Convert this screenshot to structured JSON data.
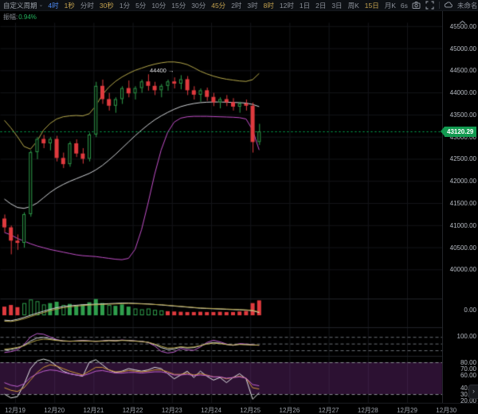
{
  "toolbar": {
    "period_dropdown": "自定义周期",
    "timeframes": [
      {
        "label": "4时",
        "state": "selected"
      },
      {
        "label": "1秒",
        "state": "favorite"
      },
      {
        "label": "分时",
        "state": "normal"
      },
      {
        "label": "30秒",
        "state": "favorite"
      },
      {
        "label": "1分",
        "state": "normal"
      },
      {
        "label": "5分",
        "state": "normal"
      },
      {
        "label": "10分",
        "state": "normal"
      },
      {
        "label": "15分",
        "state": "normal"
      },
      {
        "label": "30分",
        "state": "normal"
      },
      {
        "label": "45分",
        "state": "favorite"
      },
      {
        "label": "2时",
        "state": "normal"
      },
      {
        "label": "3时",
        "state": "normal"
      },
      {
        "label": "8时",
        "state": "favorite"
      },
      {
        "label": "12时",
        "state": "normal"
      },
      {
        "label": "1日",
        "state": "normal"
      },
      {
        "label": "2日",
        "state": "normal"
      },
      {
        "label": "3日",
        "state": "normal"
      },
      {
        "label": "周K",
        "state": "normal"
      },
      {
        "label": "15日",
        "state": "favorite"
      },
      {
        "label": "月K",
        "state": "normal"
      }
    ],
    "countdown": "6s",
    "account_label": "未命名",
    "order_button": "下单"
  },
  "info_row": {
    "label": "振幅:",
    "value": "0.94%"
  },
  "price_axis": {
    "labels": [
      "45500.00",
      "45000.00",
      "44500.00",
      "44000.00",
      "43500.00",
      "43000.00",
      "42500.00",
      "42000.00",
      "41500.00",
      "41000.00",
      "40500.00",
      "40000.00"
    ],
    "current_price": "43120.29"
  },
  "date_axis": [
    "12月19",
    "12月20",
    "12月21",
    "12月22",
    "12月23",
    "12月24",
    "12月25",
    "12月26",
    "12月27",
    "12月28",
    "12月29",
    "12月30"
  ],
  "annotation": {
    "text": "44400",
    "arrow": "→",
    "price": 44400
  },
  "panel_axis": {
    "volume_zero": "0.00",
    "indicator2_top": "100.00",
    "indicator3_labels": [
      "80.00",
      "70.00",
      "60.00",
      "40.00",
      "30.00",
      "20.00"
    ]
  },
  "colors": {
    "up": "#2f9e4c",
    "down": "#df3a3e",
    "current_line": "#00b355",
    "tag_bg": "#129a50",
    "boll_upper": "#b6a94b",
    "boll_mid": "#cfd2d6",
    "boll_lower": "#c24fc9",
    "accent_blue": "#4e8bf5",
    "favorite_gold": "#c2a04e",
    "order_blue": "#2765ec",
    "kdj_band": "rgba(146,56,166,0.30)"
  },
  "chart_data": {
    "type": "candlestick",
    "period": "4时",
    "symbol_current_price": 43120.29,
    "price_axis_range": [
      40000,
      45500
    ],
    "candles": [
      [
        41150,
        41250,
        40850,
        40950
      ],
      [
        40950,
        41000,
        40350,
        40650
      ],
      [
        40650,
        40800,
        40450,
        40600
      ],
      [
        40600,
        41300,
        40500,
        41250
      ],
      [
        41250,
        42700,
        41200,
        42650
      ],
      [
        42650,
        43000,
        42500,
        42950
      ],
      [
        42950,
        43050,
        42750,
        42850
      ],
      [
        42850,
        43000,
        42700,
        42950
      ],
      [
        42950,
        43030,
        42450,
        42520
      ],
      [
        42520,
        42650,
        42300,
        42380
      ],
      [
        42380,
        42900,
        42330,
        42850
      ],
      [
        42850,
        42950,
        42550,
        42620
      ],
      [
        42620,
        42750,
        42400,
        42500
      ],
      [
        42500,
        43100,
        42450,
        43050
      ],
      [
        43050,
        44250,
        43000,
        44150
      ],
      [
        44150,
        44300,
        43750,
        43850
      ],
      [
        43850,
        44000,
        43600,
        43700
      ],
      [
        43700,
        43900,
        43550,
        43850
      ],
      [
        43850,
        44150,
        43750,
        44100
      ],
      [
        44100,
        44280,
        43900,
        43980
      ],
      [
        43980,
        44150,
        43850,
        44100
      ],
      [
        44100,
        44300,
        44000,
        44250
      ],
      [
        44250,
        44420,
        44050,
        44150
      ],
      [
        44150,
        44250,
        43950,
        44050
      ],
      [
        44050,
        44200,
        43900,
        44150
      ],
      [
        44150,
        44300,
        44050,
        44250
      ],
      [
        44250,
        44350,
        44100,
        44200
      ],
      [
        44200,
        44400,
        44080,
        44300
      ],
      [
        44300,
        44380,
        43950,
        44050
      ],
      [
        44050,
        44150,
        43850,
        43950
      ],
      [
        43950,
        44100,
        43800,
        44050
      ],
      [
        44050,
        44120,
        43820,
        43900
      ],
      [
        43900,
        44000,
        43700,
        43780
      ],
      [
        43780,
        43900,
        43650,
        43850
      ],
      [
        43850,
        43950,
        43700,
        43780
      ],
      [
        43780,
        43880,
        43600,
        43680
      ],
      [
        43680,
        43800,
        43550,
        43750
      ],
      [
        43750,
        43850,
        43600,
        43700
      ],
      [
        43700,
        43780,
        42650,
        42880
      ],
      [
        42880,
        43300,
        42820,
        43120
      ]
    ],
    "bollinger": {
      "upper": [
        43370,
        43200,
        43000,
        42780,
        42720,
        42900,
        43150,
        43300,
        43400,
        43450,
        43470,
        43480,
        43470,
        43520,
        43700,
        43950,
        44120,
        44250,
        44350,
        44430,
        44500,
        44550,
        44600,
        44640,
        44670,
        44690,
        44690,
        44670,
        44630,
        44560,
        44480,
        44420,
        44370,
        44330,
        44300,
        44280,
        44260,
        44250,
        44290,
        44430
      ],
      "mid": [
        41590,
        41480,
        41400,
        41380,
        41420,
        41500,
        41620,
        41740,
        41840,
        41920,
        41990,
        42050,
        42110,
        42170,
        42250,
        42350,
        42470,
        42600,
        42740,
        42880,
        43020,
        43150,
        43270,
        43380,
        43470,
        43550,
        43620,
        43680,
        43720,
        43750,
        43770,
        43780,
        43785,
        43785,
        43780,
        43775,
        43770,
        43760,
        43730,
        43680
      ],
      "lower": [
        40835,
        40780,
        40700,
        40640,
        40580,
        40530,
        40490,
        40450,
        40420,
        40390,
        40360,
        40330,
        40310,
        40300,
        40290,
        40270,
        40250,
        40230,
        40220,
        40250,
        40450,
        40900,
        41500,
        42150,
        42700,
        43100,
        43330,
        43420,
        43450,
        43460,
        43460,
        43460,
        43455,
        43450,
        43445,
        43440,
        43430,
        43400,
        43150,
        42700
      ]
    },
    "volume": {
      "values": [
        0.32,
        0.38,
        0.3,
        0.45,
        0.58,
        0.52,
        0.4,
        0.45,
        0.5,
        0.38,
        0.42,
        0.36,
        0.4,
        0.48,
        0.6,
        0.45,
        0.38,
        0.35,
        0.4,
        0.32,
        0.25,
        0.22,
        0.25,
        0.2,
        0.18,
        0.15,
        0.14,
        0.13,
        0.12,
        0.12,
        0.13,
        0.12,
        0.12,
        0.13,
        0.12,
        0.12,
        0.14,
        0.16,
        0.45,
        0.55
      ],
      "colors": [
        "R",
        "R",
        "R",
        "g",
        "g",
        "g",
        "g",
        "G",
        "G",
        "g",
        "G",
        "G",
        "G",
        "G",
        "G",
        "G",
        "g",
        "G",
        "G",
        "G",
        "g",
        "g",
        "g",
        "g",
        "g",
        "R",
        "R",
        "R",
        "R",
        "R",
        "R",
        "R",
        "R",
        "R",
        "R",
        "R",
        "R",
        "R",
        "R",
        "R"
      ],
      "ma_white": [
        -0.18,
        -0.2,
        -0.15,
        -0.08,
        0.0,
        0.08,
        0.15,
        0.22,
        0.28,
        0.32,
        0.35,
        0.37,
        0.39,
        0.4,
        0.41,
        0.42,
        0.43,
        0.44,
        0.45,
        0.45,
        0.44,
        0.43,
        0.42,
        0.4,
        0.38,
        0.36,
        0.34,
        0.32,
        0.3,
        0.28,
        0.26,
        0.25,
        0.24,
        0.23,
        0.22,
        0.21,
        0.2,
        0.19,
        0.17,
        0.1
      ],
      "ma_yellow": [
        -0.22,
        -0.23,
        -0.19,
        -0.13,
        -0.05,
        0.03,
        0.1,
        0.17,
        0.23,
        0.28,
        0.31,
        0.34,
        0.36,
        0.38,
        0.39,
        0.4,
        0.41,
        0.42,
        0.43,
        0.44,
        0.43,
        0.42,
        0.41,
        0.4,
        0.39,
        0.37,
        0.35,
        0.33,
        0.31,
        0.29,
        0.27,
        0.26,
        0.25,
        0.24,
        0.23,
        0.22,
        0.21,
        0.2,
        0.18,
        0.12
      ]
    },
    "indicator2": {
      "ref_lines": [
        80,
        50,
        20
      ],
      "series": [
        {
          "name": "magenta",
          "values": [
            10,
            14,
            22,
            45,
            80,
            95,
            92,
            80,
            68,
            62,
            60,
            62,
            64,
            62,
            60,
            62,
            65,
            63,
            66,
            64,
            62,
            60,
            55,
            40,
            15,
            8,
            12,
            28,
            22,
            20,
            35,
            55,
            65,
            58,
            48,
            42,
            50,
            48,
            45,
            42
          ]
        },
        {
          "name": "white",
          "values": [
            20,
            24,
            30,
            42,
            62,
            75,
            78,
            72,
            66,
            62,
            61,
            62,
            63,
            62,
            61,
            62,
            64,
            63,
            65,
            64,
            62,
            60,
            56,
            46,
            32,
            24,
            26,
            34,
            30,
            32,
            40,
            50,
            55,
            52,
            46,
            43,
            47,
            46,
            44,
            43
          ]
        },
        {
          "name": "yellow",
          "values": [
            25,
            28,
            33,
            40,
            55,
            65,
            70,
            68,
            64,
            62,
            61,
            61,
            62,
            61,
            60,
            61,
            63,
            62,
            64,
            63,
            61,
            59,
            56,
            48,
            38,
            30,
            31,
            36,
            33,
            35,
            41,
            48,
            52,
            50,
            46,
            44,
            46,
            45,
            44,
            43
          ]
        }
      ]
    },
    "indicator3": {
      "ref_lines": [
        80,
        30
      ],
      "band": [
        30,
        80
      ],
      "series": [
        {
          "name": "white",
          "values": [
            30,
            24,
            26,
            45,
            70,
            82,
            85,
            82,
            74,
            66,
            62,
            60,
            58,
            80,
            84,
            76,
            68,
            64,
            66,
            70,
            68,
            66,
            68,
            72,
            70,
            62,
            54,
            60,
            66,
            56,
            66,
            58,
            52,
            56,
            48,
            56,
            62,
            54,
            22,
            32
          ]
        },
        {
          "name": "yellow",
          "values": [
            40,
            36,
            34,
            40,
            52,
            64,
            72,
            76,
            74,
            70,
            66,
            63,
            60,
            66,
            72,
            72,
            68,
            65,
            65,
            67,
            66,
            65,
            66,
            68,
            68,
            65,
            61,
            61,
            63,
            60,
            62,
            60,
            57,
            57,
            54,
            56,
            58,
            55,
            40,
            38
          ]
        },
        {
          "name": "magenta",
          "values": [
            48,
            44,
            42,
            46,
            56,
            62,
            66,
            68,
            67,
            64,
            62,
            60,
            59,
            62,
            66,
            67,
            65,
            63,
            63,
            64,
            64,
            63,
            64,
            65,
            65,
            63,
            60,
            60,
            61,
            59,
            60,
            59,
            57,
            57,
            55,
            56,
            57,
            55,
            45,
            43
          ]
        }
      ]
    }
  }
}
